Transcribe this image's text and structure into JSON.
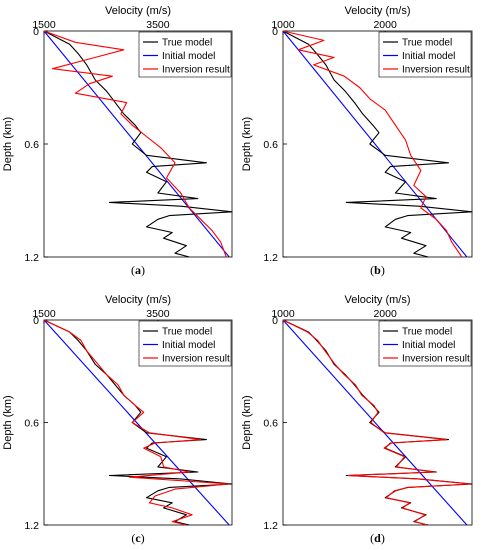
{
  "chart_data": [
    {
      "type": "line",
      "panel_label": "a",
      "xlabel": "Velocity (m/s)",
      "ylabel": "Depth (km)",
      "xlim": [
        1500,
        4800
      ],
      "ylim": [
        0,
        1.2
      ],
      "x_axis_position": "top",
      "y_inverted": true,
      "xticks": [
        "1500",
        "3500"
      ],
      "yticks": [
        "0",
        "0.6",
        "1.2"
      ],
      "legend_position": "top-right",
      "series": [
        {
          "name": "True model",
          "color": "#000000",
          "depth": [
            0,
            0.07,
            0.12,
            0.18,
            0.26,
            0.32,
            0.38,
            0.44,
            0.5,
            0.54,
            0.6,
            0.66,
            0.7,
            0.72,
            0.75,
            0.8,
            0.86,
            0.89,
            0.91,
            0.93,
            0.96,
            0.98,
            1.0,
            1.04,
            1.07,
            1.1,
            1.14,
            1.18,
            1.2
          ],
          "velocity": [
            1500,
            1950,
            2100,
            2250,
            2400,
            2600,
            2750,
            2900,
            3100,
            3200,
            3050,
            3300,
            4350,
            3400,
            3300,
            3650,
            3500,
            4200,
            2650,
            3900,
            4800,
            3700,
            3500,
            3300,
            3750,
            3600,
            4000,
            3800,
            4050
          ]
        },
        {
          "name": "Initial model",
          "color": "#0000ff",
          "depth": [
            0,
            1.2
          ],
          "velocity": [
            1500,
            4750
          ]
        },
        {
          "name": "Inversion result",
          "color": "#ff0000",
          "depth": [
            0,
            0.06,
            0.1,
            0.14,
            0.2,
            0.24,
            0.28,
            0.33,
            0.38,
            0.44,
            0.5,
            0.56,
            0.62,
            0.7,
            0.78,
            0.86,
            0.94,
            1.0,
            1.06,
            1.12,
            1.2
          ],
          "velocity": [
            1500,
            2050,
            2900,
            2400,
            1650,
            2700,
            2300,
            2050,
            2950,
            2850,
            3050,
            3300,
            3550,
            3800,
            3650,
            3900,
            4050,
            4250,
            4450,
            4600,
            4700
          ]
        }
      ]
    },
    {
      "type": "line",
      "panel_label": "b",
      "xlabel": "Velocity (m/s)",
      "ylabel": "Depth (km)",
      "xlim": [
        1000,
        2850
      ],
      "ylim": [
        0,
        1.2
      ],
      "x_axis_position": "top",
      "y_inverted": true,
      "xticks": [
        "1000",
        "2000"
      ],
      "yticks": [
        "0",
        "0.6",
        "1.2"
      ],
      "legend_position": "top-right",
      "series": [
        {
          "name": "True model",
          "color": "#000000",
          "depth": [
            0,
            0.07,
            0.12,
            0.18,
            0.26,
            0.32,
            0.38,
            0.44,
            0.5,
            0.54,
            0.6,
            0.66,
            0.7,
            0.72,
            0.75,
            0.8,
            0.86,
            0.89,
            0.91,
            0.93,
            0.96,
            0.98,
            1.0,
            1.04,
            1.07,
            1.1,
            1.14,
            1.18,
            1.2
          ],
          "velocity": [
            1000,
            1250,
            1330,
            1420,
            1500,
            1610,
            1700,
            1780,
            1880,
            1940,
            1850,
            2000,
            2620,
            2050,
            2000,
            2200,
            2100,
            2500,
            1620,
            2330,
            2850,
            2220,
            2100,
            2000,
            2250,
            2160,
            2400,
            2280,
            2420
          ]
        },
        {
          "name": "Initial model",
          "color": "#0000ff",
          "depth": [
            0,
            1.2
          ],
          "velocity": [
            1000,
            2800
          ]
        },
        {
          "name": "Inversion result",
          "color": "#ff0000",
          "depth": [
            0,
            0.05,
            0.1,
            0.14,
            0.18,
            0.24,
            0.3,
            0.36,
            0.42,
            0.5,
            0.58,
            0.66,
            0.74,
            0.82,
            0.88,
            0.94,
            1.0,
            1.06,
            1.12,
            1.2
          ],
          "velocity": [
            1000,
            1400,
            1150,
            1500,
            1300,
            1600,
            1750,
            1850,
            2000,
            2100,
            2200,
            2250,
            2350,
            2280,
            2400,
            2350,
            2500,
            2600,
            2650,
            2750
          ]
        }
      ]
    },
    {
      "type": "line",
      "panel_label": "c",
      "xlabel": "Velocity (m/s)",
      "ylabel": "Depth (km)",
      "xlim": [
        1500,
        4800
      ],
      "ylim": [
        0,
        1.2
      ],
      "x_axis_position": "top",
      "y_inverted": true,
      "xticks": [
        "1500",
        "3500"
      ],
      "yticks": [
        "0",
        "0.6",
        "1.2"
      ],
      "legend_position": "top-right",
      "series": [
        {
          "name": "True model",
          "color": "#000000",
          "depth": [
            0,
            0.07,
            0.12,
            0.18,
            0.26,
            0.32,
            0.38,
            0.44,
            0.5,
            0.54,
            0.6,
            0.66,
            0.7,
            0.72,
            0.75,
            0.8,
            0.86,
            0.89,
            0.91,
            0.93,
            0.96,
            0.98,
            1.0,
            1.04,
            1.07,
            1.1,
            1.14,
            1.18,
            1.2
          ],
          "velocity": [
            1500,
            1950,
            2100,
            2250,
            2400,
            2600,
            2750,
            2900,
            3100,
            3200,
            3050,
            3300,
            4350,
            3400,
            3300,
            3650,
            3500,
            4200,
            2650,
            3900,
            4800,
            3700,
            3500,
            3300,
            3750,
            3600,
            4000,
            3800,
            4050
          ]
        },
        {
          "name": "Initial model",
          "color": "#0000ff",
          "depth": [
            0,
            1.2
          ],
          "velocity": [
            1500,
            4750
          ]
        },
        {
          "name": "Inversion result",
          "color": "#ff0000",
          "depth": [
            0,
            0.07,
            0.12,
            0.18,
            0.26,
            0.32,
            0.38,
            0.44,
            0.5,
            0.54,
            0.6,
            0.66,
            0.7,
            0.72,
            0.75,
            0.8,
            0.86,
            0.89,
            0.92,
            0.96,
            0.99,
            1.03,
            1.07,
            1.1,
            1.14,
            1.18,
            1.2
          ],
          "velocity": [
            1500,
            1950,
            2150,
            2250,
            2450,
            2600,
            2800,
            2900,
            3100,
            3250,
            3050,
            3350,
            4250,
            3450,
            3250,
            3550,
            3600,
            4050,
            3000,
            4750,
            3800,
            3450,
            3350,
            3750,
            4100,
            3750,
            4000
          ]
        }
      ]
    },
    {
      "type": "line",
      "panel_label": "d",
      "xlabel": "Velocity (m/s)",
      "ylabel": "Depth (km)",
      "xlim": [
        1000,
        2850
      ],
      "ylim": [
        0,
        1.2
      ],
      "x_axis_position": "top",
      "y_inverted": true,
      "xticks": [
        "1000",
        "2000"
      ],
      "yticks": [
        "0",
        "0.6",
        "1.2"
      ],
      "legend_position": "top-right",
      "series": [
        {
          "name": "True model",
          "color": "#000000",
          "depth": [
            0,
            0.07,
            0.12,
            0.18,
            0.26,
            0.32,
            0.38,
            0.44,
            0.5,
            0.54,
            0.6,
            0.66,
            0.7,
            0.72,
            0.75,
            0.8,
            0.86,
            0.89,
            0.91,
            0.93,
            0.96,
            0.98,
            1.0,
            1.04,
            1.07,
            1.1,
            1.14,
            1.18,
            1.2
          ],
          "velocity": [
            1000,
            1250,
            1330,
            1420,
            1500,
            1610,
            1700,
            1780,
            1880,
            1940,
            1850,
            2000,
            2620,
            2050,
            2000,
            2200,
            2100,
            2500,
            1620,
            2330,
            2850,
            2220,
            2100,
            2000,
            2250,
            2160,
            2400,
            2280,
            2420
          ]
        },
        {
          "name": "Initial model",
          "color": "#0000ff",
          "depth": [
            0,
            1.2
          ],
          "velocity": [
            1000,
            2800
          ]
        },
        {
          "name": "Inversion result",
          "color": "#ff0000",
          "depth": [
            0,
            0.07,
            0.12,
            0.18,
            0.26,
            0.32,
            0.38,
            0.44,
            0.5,
            0.54,
            0.6,
            0.66,
            0.7,
            0.72,
            0.75,
            0.8,
            0.86,
            0.89,
            0.91,
            0.93,
            0.96,
            0.98,
            1.0,
            1.04,
            1.07,
            1.1,
            1.14,
            1.18,
            1.2
          ],
          "velocity": [
            1000,
            1240,
            1340,
            1410,
            1510,
            1600,
            1710,
            1770,
            1890,
            1930,
            1860,
            1990,
            2600,
            2060,
            1990,
            2190,
            2110,
            2480,
            1640,
            2320,
            2830,
            2230,
            2090,
            2010,
            2240,
            2170,
            2390,
            2290,
            2410
          ]
        }
      ]
    }
  ]
}
